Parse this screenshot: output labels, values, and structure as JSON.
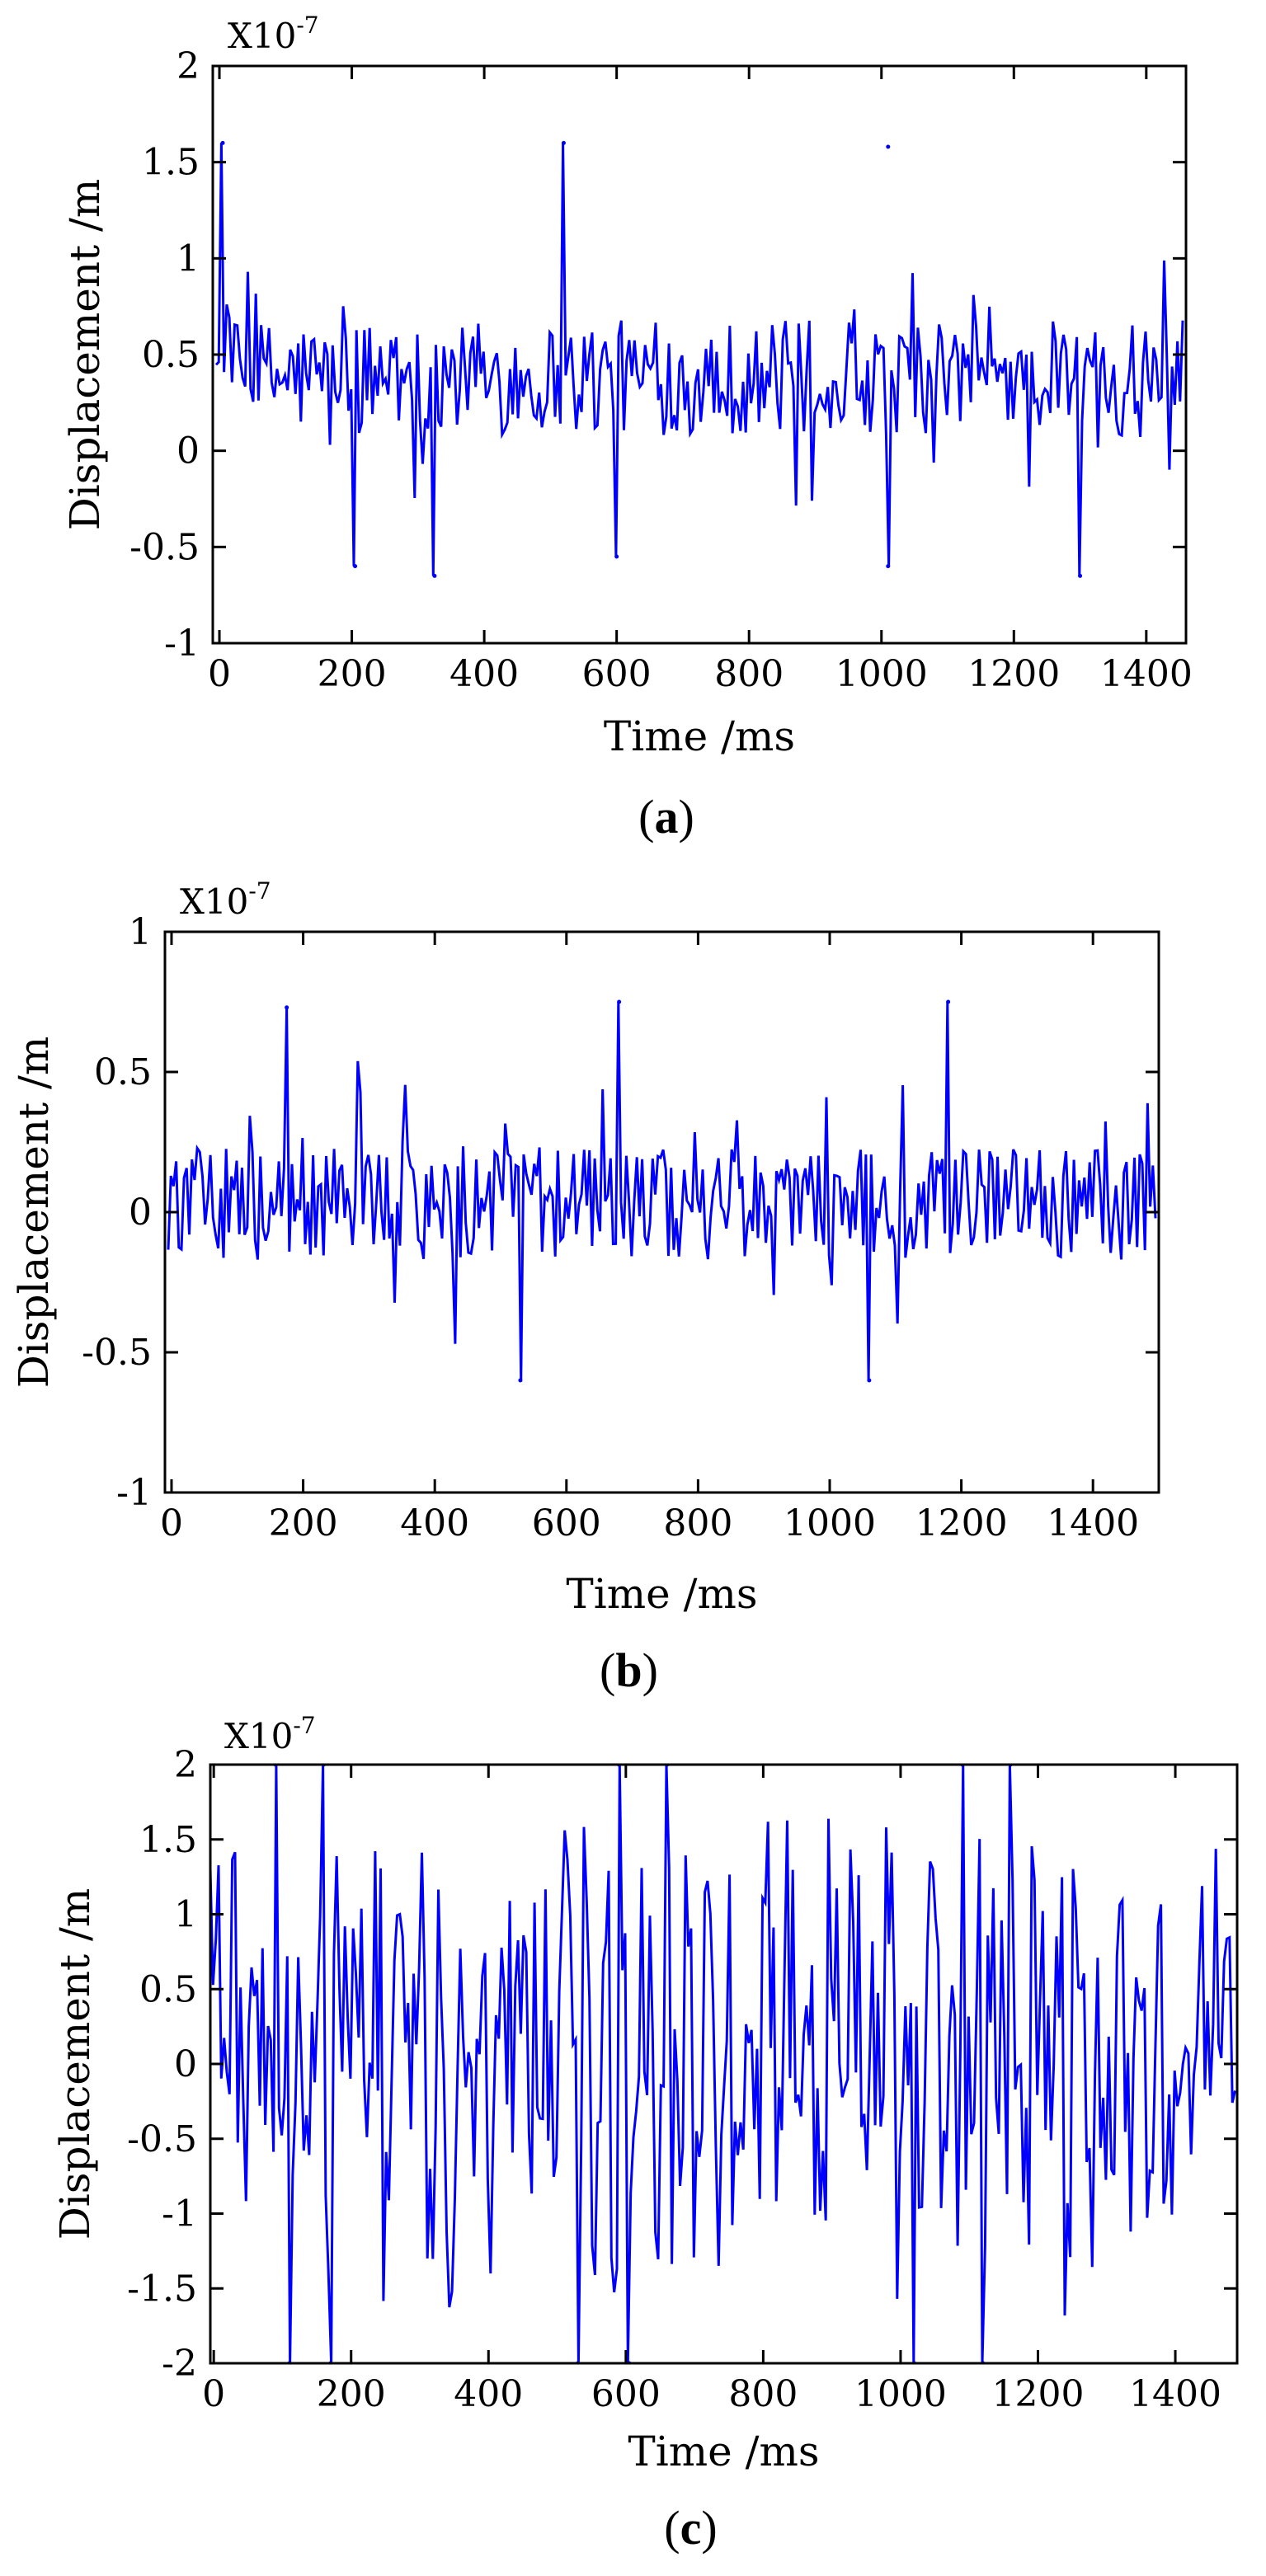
{
  "chart_data": [
    {
      "id": "a",
      "type": "line",
      "title": "",
      "xlabel": "Time /ms",
      "ylabel": "Displacement /m",
      "scale_label": "X10",
      "scale_exp": "-7",
      "caption_open": "(",
      "caption_letter": "a",
      "caption_close": ")",
      "xlim": [
        -10,
        1460
      ],
      "ylim": [
        -1,
        2
      ],
      "xticks": [
        0,
        200,
        400,
        600,
        800,
        1000,
        1200,
        1400
      ],
      "yticks": [
        -1,
        -0.5,
        0,
        0.5,
        1,
        1.5,
        2
      ],
      "ytick_labels": [
        "-1",
        "-0.5",
        "0",
        "0.5",
        "1",
        "1.5",
        "2"
      ],
      "grid": false,
      "series": [
        {
          "name": "displacement",
          "color": "#0000ff",
          "mean": 0.38,
          "noise_amplitude": 0.3,
          "min": -0.65,
          "max": 1.6,
          "x_start": -5,
          "x_end": 1458,
          "sample_step": 4,
          "x": [
            5,
            205,
            325,
            520,
            600,
            1010,
            1010,
            1300
          ],
          "y": [
            1.6,
            -0.6,
            -0.65,
            1.6,
            -0.55,
            1.58,
            -0.6,
            -0.65
          ]
        }
      ]
    },
    {
      "id": "b",
      "type": "line",
      "title": "",
      "xlabel": "Time /ms",
      "ylabel": "Displacement /m",
      "scale_label": "X10",
      "scale_exp": "-7",
      "caption_open": "(",
      "caption_letter": "b",
      "caption_close": ")",
      "xlim": [
        -10,
        1500
      ],
      "ylim": [
        -1,
        1
      ],
      "xticks": [
        0,
        200,
        400,
        600,
        800,
        1000,
        1200,
        1400
      ],
      "yticks": [
        -1,
        -0.5,
        0,
        0.5,
        1
      ],
      "ytick_labels": [
        "-1",
        "-0.5",
        "0",
        "0.5",
        "1"
      ],
      "grid": false,
      "series": [
        {
          "name": "displacement",
          "color": "#0000ff",
          "mean": 0.03,
          "noise_amplitude": 0.2,
          "min": -0.6,
          "max": 0.75,
          "x_start": -5,
          "x_end": 1498,
          "sample_step": 4,
          "x": [
            175,
            530,
            680,
            1060,
            1180
          ],
          "y": [
            0.73,
            -0.6,
            0.75,
            -0.6,
            0.75
          ]
        }
      ]
    },
    {
      "id": "c",
      "type": "line",
      "title": "",
      "xlabel": "Time /ms",
      "ylabel": "Displacement /m",
      "scale_label": "X10",
      "scale_exp": "-7",
      "caption_open": "(",
      "caption_letter": "c",
      "caption_close": ")",
      "xlim": [
        -5,
        1490
      ],
      "ylim": [
        -2,
        2
      ],
      "xticks": [
        0,
        200,
        400,
        600,
        800,
        1000,
        1200,
        1400
      ],
      "yticks": [
        -2,
        -1.5,
        -1,
        -0.5,
        0,
        0.5,
        1,
        1.5,
        2
      ],
      "ytick_labels": [
        "-2",
        "-1.5",
        "-1",
        "-0.5",
        "0",
        "0.5",
        "1",
        "1.5",
        "2"
      ],
      "grid": false,
      "series": [
        {
          "name": "displacement",
          "color": "#0000ff",
          "mean": 0.0,
          "noise_amplitude": 0.9,
          "min": -2,
          "max": 2,
          "x_start": -5,
          "x_end": 1490,
          "sample_step": 4,
          "x": [
            90,
            160,
            590,
            660,
            1090,
            1160,
            110,
            170,
            530,
            605,
            1020,
            1120
          ],
          "y": [
            2,
            2,
            2,
            2,
            2,
            2,
            -2,
            -2,
            -2,
            -2,
            -2,
            -2
          ]
        }
      ]
    }
  ]
}
